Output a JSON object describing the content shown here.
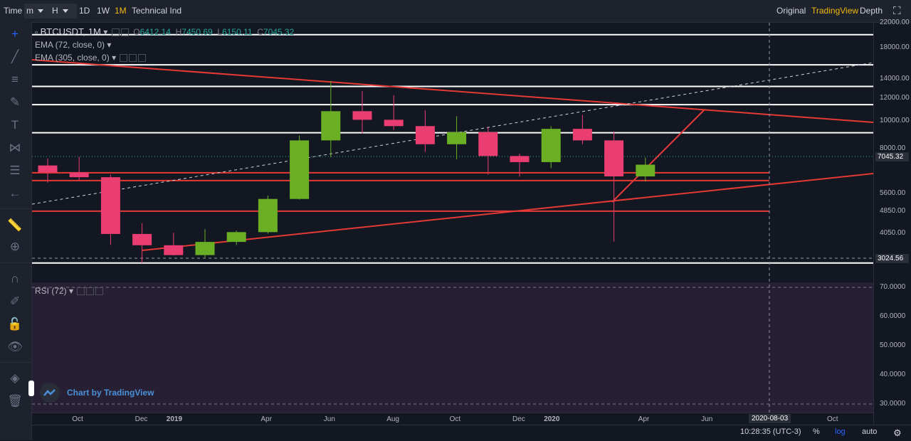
{
  "toolbar": {
    "time_label": "Time",
    "minute_value": "m",
    "hour_value": "H",
    "interval_1d": "1D",
    "interval_1w": "1W",
    "interval_1m": "1M",
    "technical_ind": "Technical Ind",
    "view_original": "Original",
    "view_tradingview": "TradingView",
    "view_depth": "Depth",
    "fullscreen_icon": "fullscreen-icon"
  },
  "legend": {
    "symbol": "BTCUSDT, 1M",
    "open_label": "O",
    "open_value": "6412.14",
    "high_label": "H",
    "high_value": "7450.69",
    "low_label": "L",
    "low_value": "6150.11",
    "close_label": "C",
    "close_value": "7045.32",
    "ema1": "EMA (72, close, 0)",
    "ema2": "EMA (305, close, 0)",
    "rsi": "RSI (72)"
  },
  "price_axis": {
    "ticks": [
      "22000.00",
      "18000.00",
      "14000.00",
      "12000.00",
      "10000.00",
      "8000.00",
      "5600.00",
      "4850.00",
      "4050.00"
    ],
    "current_price": "7045.32",
    "current_price_color": "#26a69a",
    "marker_price": "3024.56",
    "rsi_ticks": [
      "70.0000",
      "60.0000",
      "50.0000",
      "40.0000",
      "30.0000"
    ]
  },
  "time_axis": {
    "labels": [
      "Oct",
      "Dec",
      "2019",
      "Apr",
      "Jun",
      "Aug",
      "Oct",
      "Dec",
      "2020",
      "Apr",
      "Jun",
      "Oct"
    ],
    "crosshair_date": "2020-08-03"
  },
  "bottom_bar": {
    "clock": "10:28:35 (UTC-3)",
    "percent": "%",
    "log": "log",
    "auto": "auto"
  },
  "watermark": "Chart by TradingView",
  "colors": {
    "up": "#6aaf24",
    "down": "#ea3d71",
    "trend": "#e53935",
    "level": "#ffffff",
    "accent": "#f0b90b"
  },
  "chart_data": {
    "type": "candlestick",
    "symbol": "BTCUSDT",
    "interval": "1M",
    "categories": [
      "2018-09",
      "2018-10",
      "2018-11",
      "2018-12",
      "2019-01",
      "2019-02",
      "2019-03",
      "2019-04",
      "2019-05",
      "2019-06",
      "2019-07",
      "2019-08",
      "2019-09",
      "2019-10",
      "2019-11",
      "2019-12",
      "2020-01",
      "2020-02",
      "2020-03",
      "2020-04"
    ],
    "open": [
      7000,
      6620,
      6370,
      4040,
      3690,
      3410,
      3790,
      4100,
      5350,
      8560,
      10820,
      10100,
      9600,
      8300,
      9150,
      7550,
      7190,
      9390,
      8560,
      6412
    ],
    "high": [
      7400,
      7500,
      6500,
      4400,
      4080,
      4200,
      4150,
      5500,
      8900,
      13800,
      12700,
      12300,
      10900,
      10400,
      9500,
      7700,
      9600,
      10500,
      9200,
      7450
    ],
    "low": [
      6100,
      6200,
      3700,
      3200,
      3400,
      3350,
      3700,
      4050,
      5320,
      7470,
      9050,
      9300,
      7800,
      7350,
      6500,
      6400,
      6850,
      8300,
      3800,
      6150
    ],
    "close": [
      6620,
      6370,
      4040,
      3690,
      3410,
      3790,
      4100,
      5350,
      8560,
      10820,
      10100,
      9600,
      8300,
      9150,
      7550,
      7190,
      9390,
      8560,
      6412,
      7045
    ],
    "horizontal_levels": [
      20000,
      15700,
      13200,
      11400,
      9100,
      3200
    ],
    "red_levels": [
      6600,
      6200,
      4850
    ],
    "ylim": [
      2900,
      22000
    ],
    "yscale": "log",
    "rsi_range": [
      30,
      70
    ],
    "grid": false
  }
}
